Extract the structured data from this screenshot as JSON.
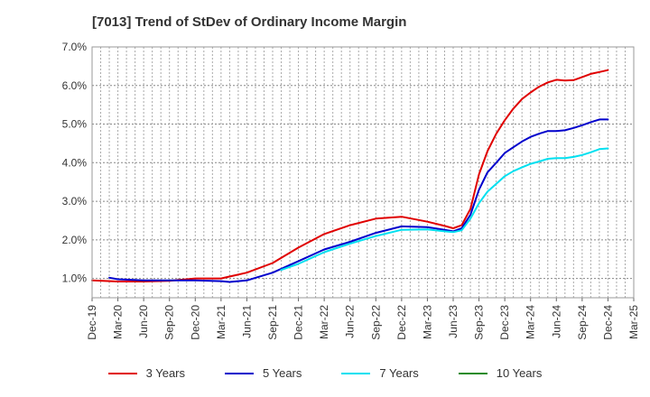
{
  "chart_data": {
    "type": "line",
    "title": "[7013]  Trend of StDev of Ordinary Income Margin",
    "xlabel": "",
    "ylabel": "",
    "ylim": [
      0.5,
      7.0
    ],
    "y_ticks": [
      "1.0%",
      "2.0%",
      "3.0%",
      "4.0%",
      "5.0%",
      "6.0%",
      "7.0%"
    ],
    "y_tick_values": [
      1,
      2,
      3,
      4,
      5,
      6,
      7
    ],
    "x_ticks": [
      "Dec-19",
      "Mar-20",
      "Jun-20",
      "Sep-20",
      "Dec-20",
      "Mar-21",
      "Jun-21",
      "Sep-21",
      "Dec-21",
      "Mar-22",
      "Jun-22",
      "Sep-22",
      "Dec-22",
      "Mar-23",
      "Jun-23",
      "Sep-23",
      "Dec-23",
      "Mar-24",
      "Jun-24",
      "Sep-24",
      "Dec-24",
      "Mar-25"
    ],
    "grid": true,
    "legend_position": "bottom",
    "series": [
      {
        "name": "3 Years",
        "color": "#e00000",
        "x": [
          0,
          1,
          2,
          3,
          4,
          5,
          6,
          7,
          8,
          9,
          10,
          11,
          12,
          13,
          13.67,
          14,
          14.33,
          14.67,
          15,
          15.33,
          15.67,
          16,
          16.33,
          16.67,
          17,
          17.33,
          17.67,
          18,
          18.33,
          18.67,
          19,
          19.33,
          19.67,
          20
        ],
        "values": [
          0.95,
          0.92,
          0.92,
          0.94,
          1.0,
          1.0,
          1.15,
          1.4,
          1.8,
          2.15,
          2.38,
          2.55,
          2.6,
          2.47,
          2.36,
          2.3,
          2.38,
          2.8,
          3.7,
          4.3,
          4.75,
          5.1,
          5.4,
          5.65,
          5.82,
          5.97,
          6.08,
          6.15,
          6.13,
          6.14,
          6.22,
          6.3,
          6.35,
          6.4
        ]
      },
      {
        "name": "5 Years",
        "color": "#0000cc",
        "x": [
          0.67,
          1,
          2,
          3,
          4,
          5,
          5.33,
          6,
          7,
          8,
          9,
          10,
          11,
          12,
          13,
          13.67,
          14,
          14.33,
          14.67,
          15,
          15.33,
          15.67,
          16,
          16.33,
          16.67,
          17,
          17.33,
          17.67,
          18,
          18.33,
          18.67,
          19,
          19.33,
          19.67,
          20
        ],
        "values": [
          1.02,
          0.98,
          0.95,
          0.95,
          0.95,
          0.93,
          0.91,
          0.95,
          1.15,
          1.45,
          1.75,
          1.95,
          2.18,
          2.35,
          2.33,
          2.26,
          2.22,
          2.3,
          2.65,
          3.3,
          3.75,
          4.0,
          4.25,
          4.4,
          4.55,
          4.67,
          4.75,
          4.82,
          4.82,
          4.84,
          4.9,
          4.97,
          5.05,
          5.12,
          5.12
        ]
      },
      {
        "name": "7 Years",
        "color": "#00e0f0",
        "x": [
          7.33,
          8,
          9,
          10,
          11,
          12,
          13,
          13.67,
          14,
          14.33,
          14.67,
          15,
          15.33,
          15.67,
          16,
          16.33,
          16.67,
          17,
          17.33,
          17.67,
          18,
          18.33,
          18.67,
          19,
          19.33,
          19.67,
          20
        ],
        "values": [
          1.22,
          1.38,
          1.68,
          1.9,
          2.1,
          2.26,
          2.27,
          2.22,
          2.2,
          2.25,
          2.55,
          2.95,
          3.25,
          3.45,
          3.65,
          3.78,
          3.88,
          3.97,
          4.03,
          4.1,
          4.12,
          4.12,
          4.15,
          4.2,
          4.27,
          4.35,
          4.37
        ]
      },
      {
        "name": "10 Years",
        "color": "#228b22",
        "x": [],
        "values": []
      }
    ]
  }
}
